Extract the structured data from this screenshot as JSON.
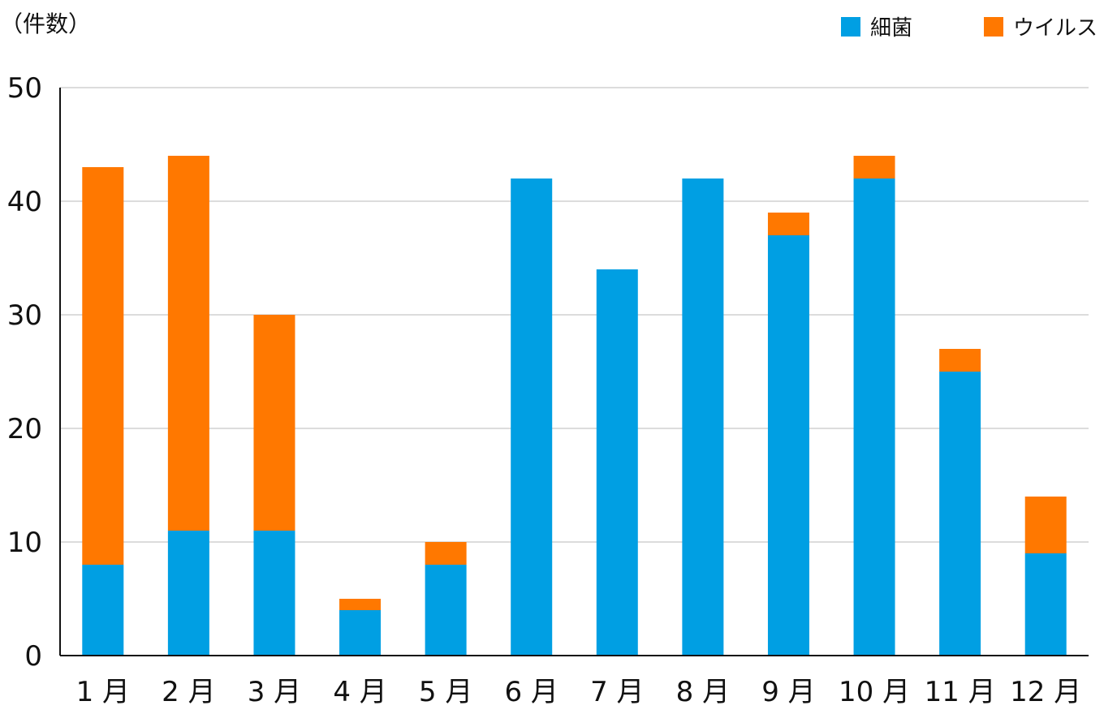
{
  "chart_data": {
    "type": "bar",
    "stacked": true,
    "ylabel": "（件数）",
    "xlabel": "",
    "ylim": [
      0,
      50
    ],
    "yticks": [
      0,
      10,
      20,
      30,
      40,
      50
    ],
    "grid": true,
    "legend_position": "top-right",
    "categories": [
      "1 月",
      "2 月",
      "3 月",
      "4 月",
      "5 月",
      "6 月",
      "7 月",
      "8 月",
      "9 月",
      "10 月",
      "11 月",
      "12 月"
    ],
    "series": [
      {
        "name": "細菌",
        "color": "#009FE3",
        "values": [
          8,
          11,
          11,
          4,
          8,
          42,
          34,
          42,
          37,
          42,
          25,
          9
        ]
      },
      {
        "name": "ウイルス",
        "color": "#FF7800",
        "values": [
          35,
          33,
          19,
          1,
          2,
          0,
          0,
          0,
          2,
          2,
          2,
          5
        ]
      }
    ]
  }
}
